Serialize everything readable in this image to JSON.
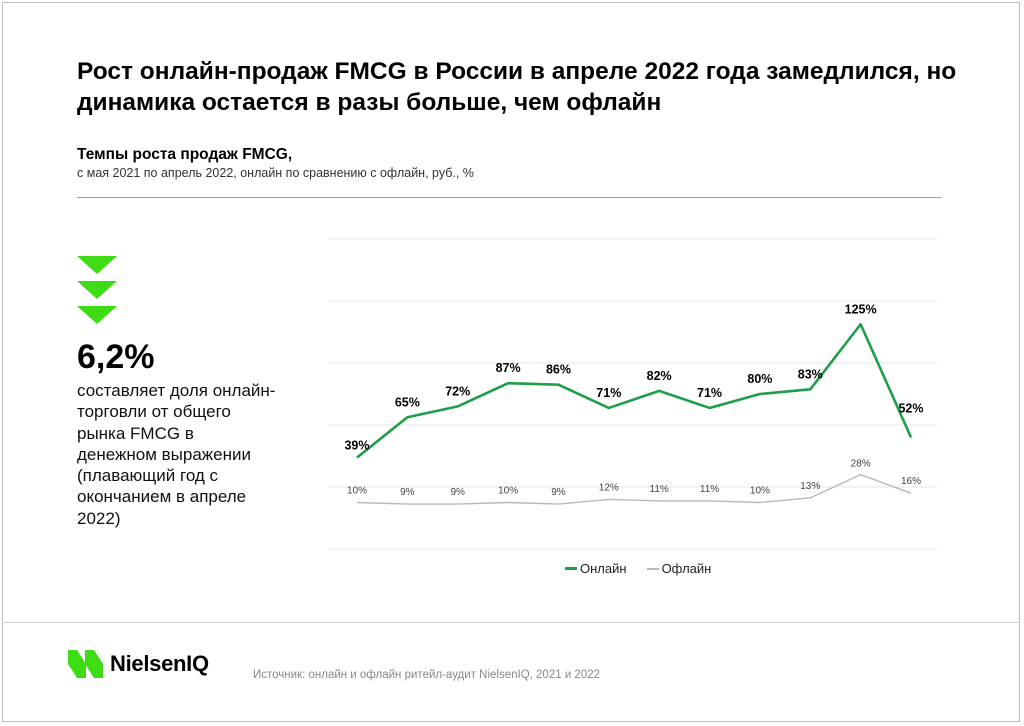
{
  "title": "Рост онлайн-продаж FMCG в России в апреле 2022 года замедлился, но динамика остается в разы больше, чем офлайн",
  "subtitle": "Темпы роста продаж FMCG,",
  "subtitle_note": "с мая 2021 по апрель 2022, онлайн по сравнению с офлайн, руб., %",
  "kpi": {
    "value": "6,2%",
    "text": "составляет доля онлайн-торговли от общего рынка FMCG в денежном выражении (плавающий год с окончанием в апреле 2022)"
  },
  "brand": {
    "name": "NielsenIQ",
    "color": "#3ddc14"
  },
  "source": "Источник: онлайн и офлайн ритейл-аудит NielsenIQ, 2021 и 2022",
  "chart_data": {
    "type": "line",
    "x": [
      1,
      2,
      3,
      4,
      5,
      6,
      7,
      8,
      9,
      10,
      11,
      12
    ],
    "series": [
      {
        "name": "Онлайн",
        "color": "#1f9e4a",
        "values": [
          39,
          65,
          72,
          87,
          86,
          71,
          82,
          71,
          80,
          83,
          125,
          52
        ],
        "labels": [
          "39%",
          "65%",
          "72%",
          "87%",
          "86%",
          "71%",
          "82%",
          "71%",
          "80%",
          "83%",
          "125%",
          "52%"
        ]
      },
      {
        "name": "Офлайн",
        "color": "#b8b8b8",
        "values": [
          10,
          9,
          9,
          10,
          9,
          12,
          11,
          11,
          10,
          13,
          28,
          16
        ],
        "labels": [
          "10%",
          "9%",
          "9%",
          "10%",
          "9%",
          "12%",
          "11%",
          "11%",
          "10%",
          "13%",
          "28%",
          "16%"
        ]
      }
    ],
    "ylim": [
      -20,
      180
    ],
    "grid": true,
    "legend": "bottom"
  }
}
